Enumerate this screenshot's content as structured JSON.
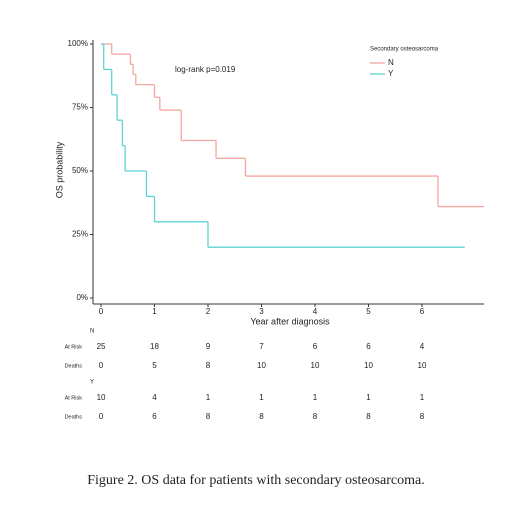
{
  "chart_data": {
    "type": "step",
    "annotation": "log-rank p=0.019",
    "xlabel": "Year after diagnosis",
    "ylabel": "OS probability",
    "legend_title": "Secondary osteosarcoma",
    "xlim": [
      -0.15,
      7.16
    ],
    "ylim": [
      0,
      100
    ],
    "xticks": [
      0,
      1,
      2,
      3,
      4,
      5,
      6
    ],
    "yticks": [
      {
        "value": 0,
        "label": "0%"
      },
      {
        "value": 25,
        "label": "25%"
      },
      {
        "value": 50,
        "label": "50%"
      },
      {
        "value": 75,
        "label": "75%"
      },
      {
        "value": 100,
        "label": "100%"
      }
    ],
    "series": [
      {
        "name": "N",
        "color": "#f4a6a0",
        "x": [
          0,
          0.2,
          0.55,
          0.6,
          0.65,
          1.0,
          1.1,
          1.5,
          2.15,
          2.7,
          6.3,
          7.16
        ],
        "values": [
          100,
          96,
          92,
          88,
          84,
          79,
          74,
          62,
          55,
          48,
          36,
          36
        ]
      },
      {
        "name": "Y",
        "color": "#5fd3d3",
        "x": [
          0,
          0.05,
          0.2,
          0.3,
          0.4,
          0.45,
          0.85,
          1.0,
          2.0,
          6.8
        ],
        "values": [
          100,
          90,
          80,
          70,
          60,
          50,
          40,
          30,
          20,
          20
        ]
      }
    ],
    "risk_table": [
      {
        "group": "N",
        "rows": [
          {
            "label": "At Risk",
            "values": [
              25,
              18,
              9,
              7,
              6,
              6,
              4
            ]
          },
          {
            "label": "Deaths",
            "values": [
              0,
              5,
              8,
              10,
              10,
              10,
              10
            ]
          }
        ]
      },
      {
        "group": "Y",
        "rows": [
          {
            "label": "At Risk",
            "values": [
              10,
              4,
              1,
              1,
              1,
              1,
              1
            ]
          },
          {
            "label": "Deaths",
            "values": [
              0,
              6,
              8,
              8,
              8,
              8,
              8
            ]
          }
        ]
      }
    ]
  },
  "caption": "Figure 2. OS data for patients with secondary osteosarcoma."
}
